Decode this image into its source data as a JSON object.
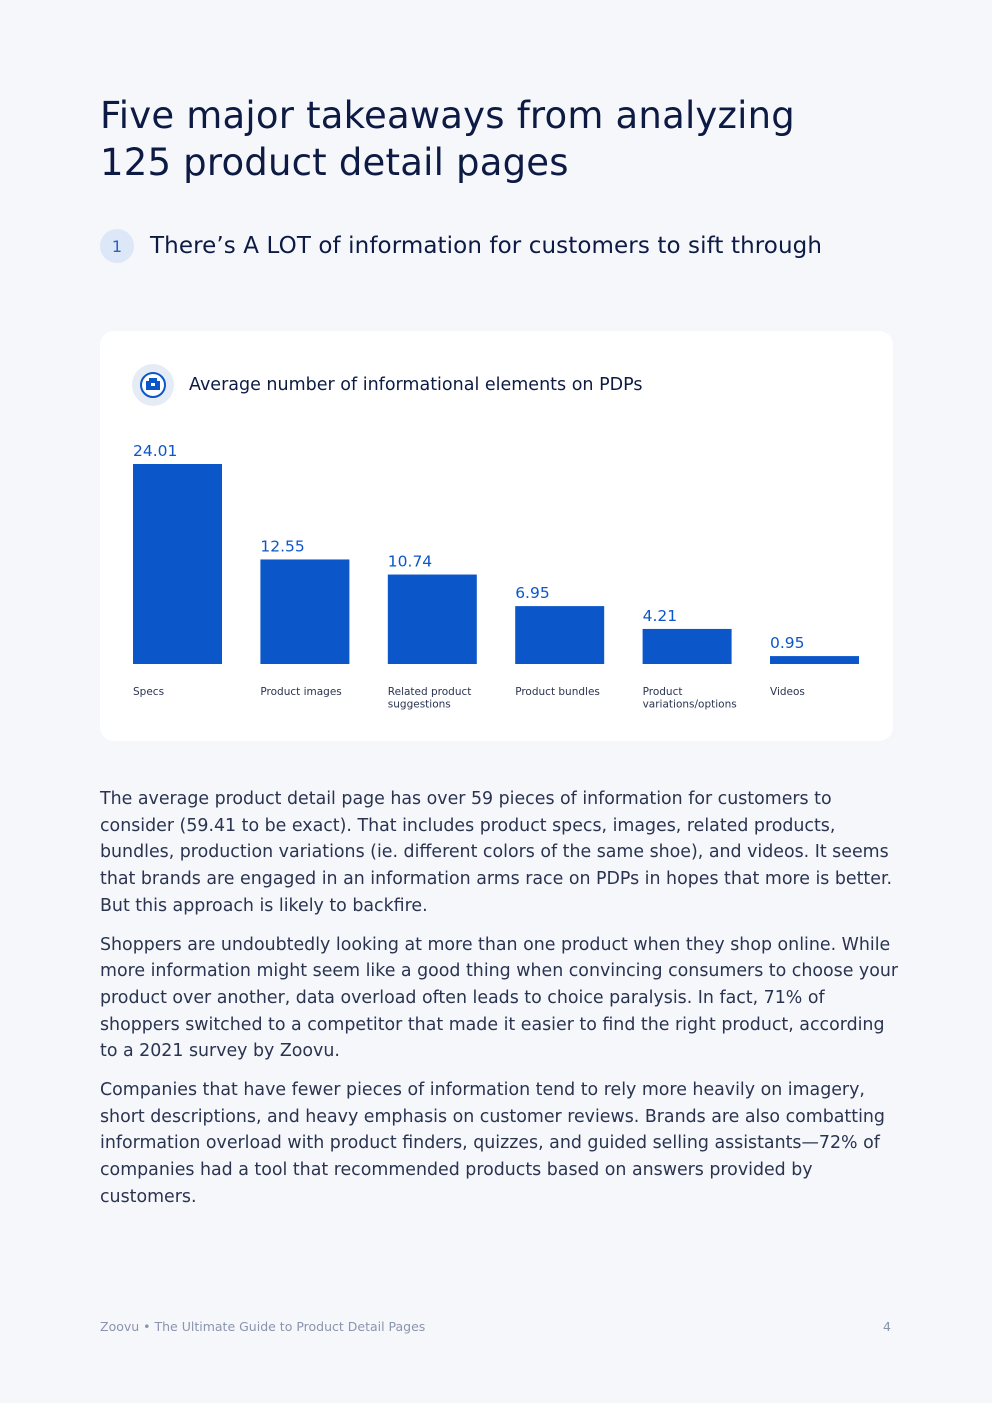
{
  "page": {
    "title_line1": "Five major takeaways from analyzing",
    "title_line2": "125 product detail pages"
  },
  "section": {
    "number": "1",
    "title": "There’s A LOT of information for customers to sift through"
  },
  "chart_card": {
    "icon": "product-box-icon"
  },
  "chart_data": {
    "type": "bar",
    "title": "Average number of informational elements on PDPs",
    "categories": [
      [
        "Specs"
      ],
      [
        "Product images"
      ],
      [
        "Related product",
        "suggestions"
      ],
      [
        "Product bundles"
      ],
      [
        "Product",
        "variations/options"
      ],
      [
        "Videos"
      ]
    ],
    "values": [
      24.01,
      12.55,
      10.74,
      6.95,
      4.21,
      0.95
    ],
    "value_labels": [
      "24.01",
      "12.55",
      "10.74",
      "6.95",
      "4.21",
      "0.95"
    ],
    "xlabel": "",
    "ylabel": "",
    "ylim": [
      0,
      24.01
    ],
    "grid": false,
    "legend": "none",
    "bar_color": "#0b57c9"
  },
  "body": {
    "p1": "The average product detail page has over 59 pieces of information for customers to consider (59.41 to be exact). That includes product specs, images, related products, bundles, production variations (ie. different colors of the same shoe), and videos. It seems that brands are engaged in an information arms race on PDPs in hopes that more is better. But this approach is likely to backfire.",
    "p2": "Shoppers are undoubtedly looking at more than one product when they shop online. While more information might seem like a good thing when convincing consumers to choose your product over another, data overload often leads to choice paralysis. In fact, 71% of shoppers switched to a competitor that made it easier to find the right product, according to a 2021 survey by Zoovu.",
    "p3": "Companies that have fewer pieces of information tend to rely more heavily on imagery, short descriptions, and heavy emphasis on customer reviews. Brands are also combatting information overload with product finders, quizzes, and guided selling assistants—72% of companies had a tool that recommended products based on answers provided by customers."
  },
  "footer": {
    "source": "Zoovu • The Ultimate Guide to Product Detail Pages",
    "page_number": "4"
  },
  "colors": {
    "accent": "#0b57c9",
    "title": "#0d1a44",
    "background": "#f5f7fb"
  }
}
